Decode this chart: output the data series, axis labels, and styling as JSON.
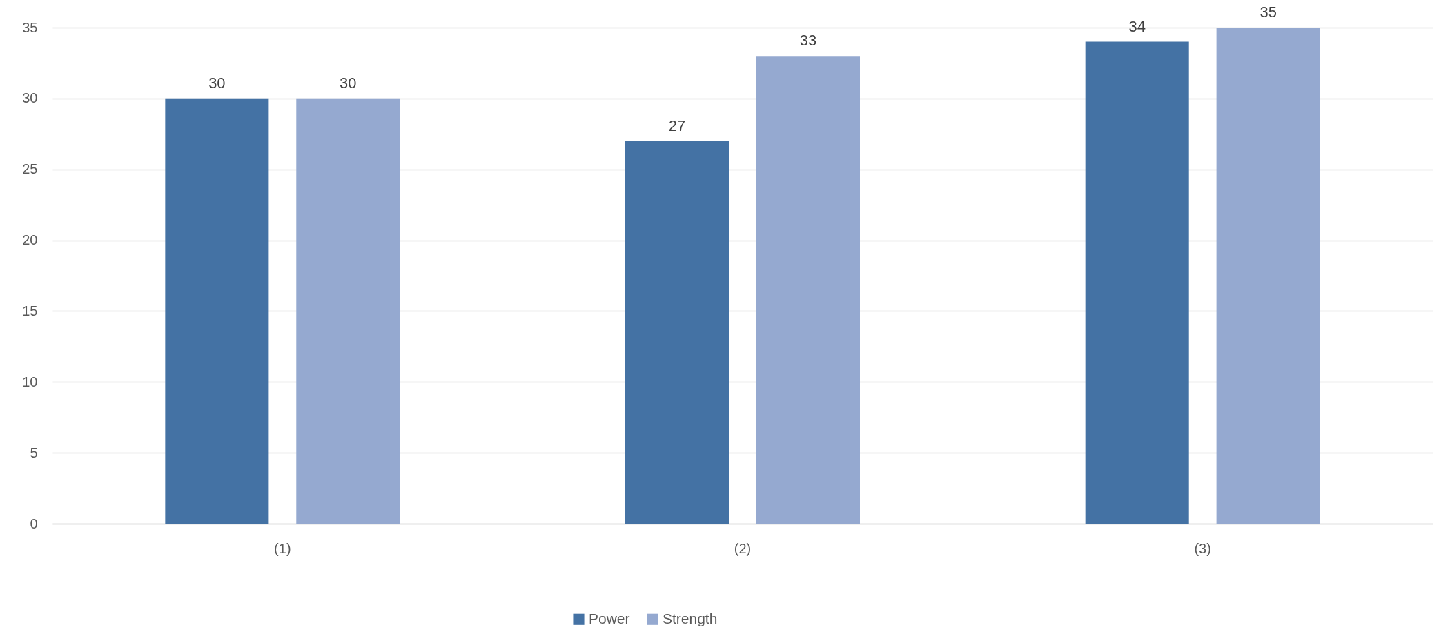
{
  "chart_data": {
    "type": "bar",
    "categories": [
      "(1)",
      "(2)",
      "(3)"
    ],
    "series": [
      {
        "name": "Power",
        "color": "#4472a4",
        "values": [
          30,
          27,
          34
        ]
      },
      {
        "name": "Strength",
        "color": "#95a9d0",
        "values": [
          30,
          33,
          35
        ]
      }
    ],
    "ylim": [
      0,
      35
    ],
    "yticks": [
      0,
      5,
      10,
      15,
      20,
      25,
      30,
      35
    ],
    "grid": "y",
    "legend": "bottom",
    "data_labels": true
  }
}
